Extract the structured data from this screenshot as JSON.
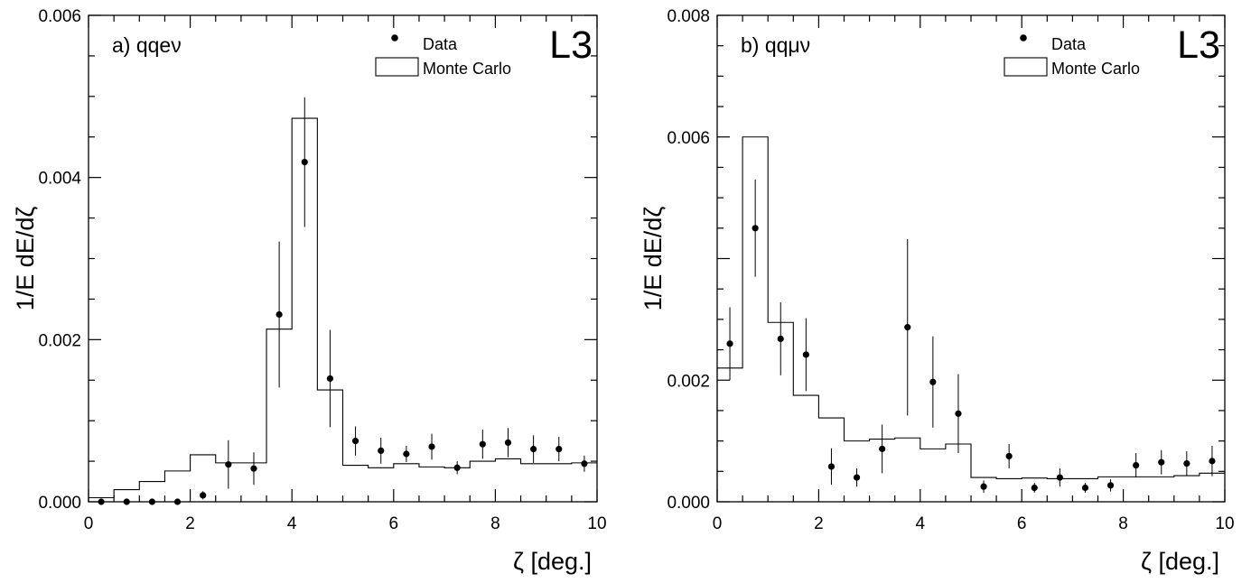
{
  "chart_data": [
    {
      "type": "scatter",
      "panel_label": "a) qqeν",
      "experiment": "L3",
      "xlabel": "ζ [deg.]",
      "ylabel": "1/E dE/dζ",
      "xlim": [
        0,
        10
      ],
      "ylim": [
        0,
        0.006
      ],
      "x_ticks": [
        "0",
        "2",
        "4",
        "6",
        "8",
        "10"
      ],
      "y_ticks": [
        "0.000",
        "0.002",
        "0.004",
        "0.006"
      ],
      "legend": {
        "data_label": "Data",
        "mc_label": "Monte Carlo",
        "position": "top-right"
      },
      "mc_histogram": {
        "name": "Monte Carlo",
        "bin_edges": [
          0,
          0.5,
          1.0,
          1.5,
          2.0,
          2.5,
          3.0,
          3.5,
          4.0,
          4.5,
          5.0,
          5.5,
          6.0,
          6.5,
          7.0,
          7.5,
          8.0,
          8.5,
          9.0,
          9.5,
          10.0
        ],
        "values": [
          5e-05,
          0.00015,
          0.00025,
          0.00038,
          0.00058,
          0.00048,
          0.00048,
          0.00213,
          0.00473,
          0.00138,
          0.00045,
          0.00042,
          0.00047,
          0.00043,
          0.00042,
          0.0005,
          0.00053,
          0.00047,
          0.00047,
          0.00048
        ]
      },
      "data_points": {
        "name": "Data",
        "x": [
          0.25,
          0.75,
          1.25,
          1.75,
          2.25,
          2.75,
          3.25,
          3.75,
          4.25,
          4.75,
          5.25,
          5.75,
          6.25,
          6.75,
          7.25,
          7.75,
          8.25,
          8.75,
          9.25,
          9.75
        ],
        "y": [
          0.0,
          0.0,
          0.0,
          0.0,
          8e-05,
          0.00046,
          0.00041,
          0.00231,
          0.00419,
          0.00152,
          0.00075,
          0.00063,
          0.00059,
          0.00068,
          0.00042,
          0.00071,
          0.00073,
          0.00065,
          0.00065,
          0.00047
        ],
        "err": [
          1e-05,
          1e-05,
          1e-05,
          1e-05,
          5e-05,
          0.0003,
          0.0002,
          0.0009,
          0.0008,
          0.0006,
          0.00018,
          0.00016,
          0.0001,
          0.00016,
          8e-05,
          0.00018,
          0.00018,
          0.00017,
          0.00015,
          0.0001
        ]
      }
    },
    {
      "type": "scatter",
      "panel_label": "b) qqμν",
      "experiment": "L3",
      "xlabel": "ζ [deg.]",
      "ylabel": "1/E dE/dζ",
      "xlim": [
        0,
        10
      ],
      "ylim": [
        0,
        0.008
      ],
      "x_ticks": [
        "0",
        "2",
        "4",
        "6",
        "8",
        "10"
      ],
      "y_ticks": [
        "0.000",
        "0.002",
        "",
        "0.006",
        "0.008"
      ],
      "legend": {
        "data_label": "Data",
        "mc_label": "Monte Carlo",
        "position": "top-right"
      },
      "mc_histogram": {
        "name": "Monte Carlo",
        "bin_edges": [
          0,
          0.5,
          1.0,
          1.5,
          2.0,
          2.5,
          3.0,
          3.5,
          4.0,
          4.5,
          5.0,
          5.5,
          6.0,
          6.5,
          7.0,
          7.5,
          8.0,
          8.5,
          9.0,
          9.5,
          10.0
        ],
        "values": [
          0.0022,
          0.006,
          0.00295,
          0.00175,
          0.00138,
          0.001,
          0.00103,
          0.00105,
          0.00087,
          0.00095,
          0.0004,
          0.00038,
          0.00039,
          0.00038,
          0.00038,
          0.00041,
          0.00041,
          0.00041,
          0.00043,
          0.00047
        ]
      },
      "data_points": {
        "name": "Data",
        "x": [
          0.25,
          0.75,
          1.25,
          1.75,
          2.25,
          2.75,
          3.25,
          3.75,
          4.25,
          4.75,
          5.25,
          5.75,
          6.25,
          6.75,
          7.25,
          7.75,
          8.25,
          8.75,
          9.25,
          9.75
        ],
        "y": [
          0.0026,
          0.0045,
          0.00268,
          0.00242,
          0.00058,
          0.0004,
          0.00087,
          0.00287,
          0.00197,
          0.00145,
          0.00025,
          0.00075,
          0.00023,
          0.0004,
          0.00023,
          0.00027,
          0.0006,
          0.00065,
          0.00063,
          0.00067
        ],
        "err": [
          0.0006,
          0.0008,
          0.0006,
          0.0006,
          0.0003,
          0.00015,
          0.0004,
          0.00145,
          0.00075,
          0.00065,
          0.0001,
          0.0002,
          8e-05,
          0.00015,
          8e-05,
          0.0001,
          0.0002,
          0.0002,
          0.0002,
          0.00025
        ]
      }
    }
  ]
}
